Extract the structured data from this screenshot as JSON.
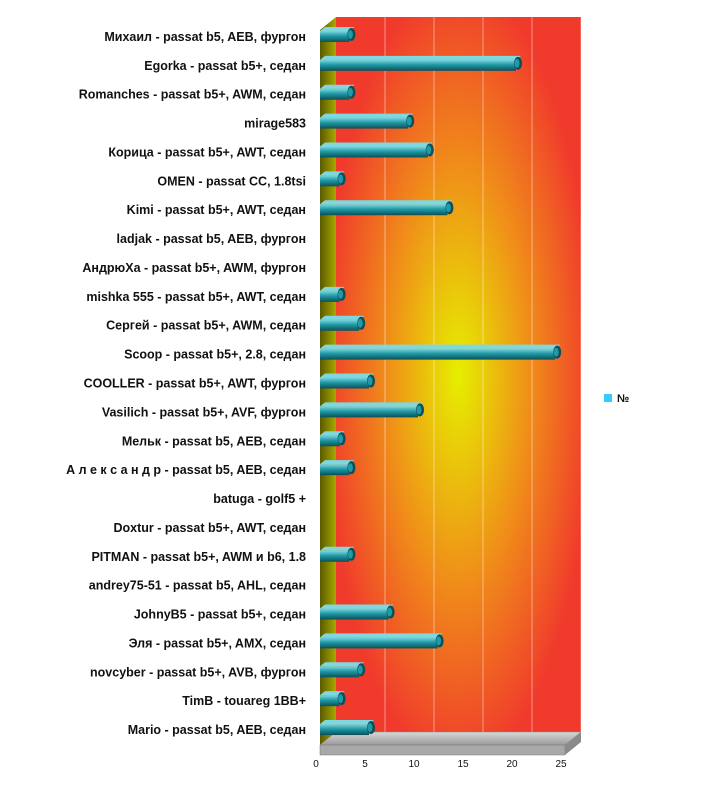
{
  "chart_data": {
    "type": "bar",
    "orientation": "horizontal",
    "categories": [
      "Михаил - passat b5, AEB, фургон",
      "Egorka - passat b5+, седан",
      "Romanches - passat b5+, AWM, седан",
      "mirage583",
      "Корица - passat b5+, AWT, седан",
      "OMEN - passat CC, 1.8tsi",
      "Kimi - passat b5+, AWT, седан",
      "ladjak - passat b5, AEB, фургон",
      "АндрюХа - passat b5+, AWM, фургон",
      "mishka 555 - passat b5+, AWT, седан",
      "Сергей - passat b5+, AWM, седан",
      "Scoop - passat b5+, 2.8, седан",
      "COOLLER - passat b5+, AWT, фургон",
      "Vasilich - passat b5+, AVF, фургон",
      "Мельк - passat b5, AEB, седан",
      "А л е к с а н д р - passat b5, AEB, седан",
      "batuga - golf5 +",
      "Doxtur - passat b5+, AWT, седан",
      "PITMAN - passat b5+, AWM  и b6, 1.8",
      "andrey75-51 - passat b5, AHL, седан",
      "JohnyB5 - passat b5+, седан",
      "Эля - passat b5+, AMX, седан",
      "novcyber - passat b5+, AVB, фургон",
      "TimB - touareg 1BB+",
      "Mario - passat b5, AEB, седан"
    ],
    "series": [
      {
        "name": "№",
        "values": [
          3,
          20,
          3,
          9,
          11,
          2,
          13,
          0,
          0,
          2,
          4,
          24,
          5,
          10,
          2,
          3,
          0,
          0,
          3,
          0,
          7,
          12,
          4,
          2,
          5
        ]
      }
    ],
    "xlim": [
      0,
      25
    ],
    "xticks": [
      "0",
      "5",
      "10",
      "15",
      "20",
      "25"
    ],
    "grid": true,
    "legend": "right",
    "colors": {
      "bar": "#1f9aa6",
      "bar_dark": "#0b4f58",
      "bar_light": "#7fd8e0",
      "legend_swatch": "#33ccff",
      "bg_center": "#e6ef00",
      "bg_mid": "#f08a1a",
      "bg_edge": "#f03a2c"
    }
  }
}
